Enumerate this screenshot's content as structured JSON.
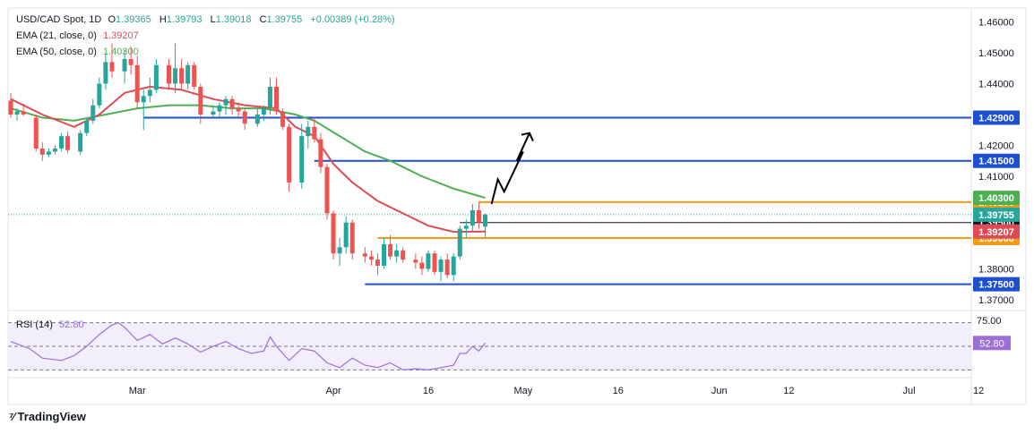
{
  "legend": {
    "symbol": "USD/CAD Spot, 1D",
    "open_label": "O",
    "open": "1.39365",
    "high_label": "H",
    "high": "1.39793",
    "low_label": "L",
    "low": "1.39018",
    "close_label": "C",
    "close": "1.39755",
    "change": "+0.00389 (+0.28%)",
    "ema21_label": "EMA (21, close, 0)",
    "ema21_value": "1.39207",
    "ema50_label": "EMA (50, close, 0)",
    "ema50_value": "1.40300",
    "rsi_label": "RSI (14)",
    "rsi_value": "52.80"
  },
  "footer": {
    "brand": "TradingView"
  },
  "colors": {
    "up": "#26a69a",
    "down": "#ef5350",
    "ema21": "#e04a54",
    "ema50": "#4caf50",
    "blue_line": "#1e4fd1",
    "orange_line": "#f39c12",
    "rsi": "#9c6fd6",
    "rsi_bg": "#f3eefb"
  },
  "chart_data": {
    "type": "candlestick",
    "title": "USD/CAD Spot, 1D",
    "ylim": [
      1.3665,
      1.4645
    ],
    "y_ticks": [
      "1.46000",
      "1.45000",
      "1.44000",
      "1.43000",
      "1.42000",
      "1.41000",
      "1.40000",
      "1.39000",
      "1.38000",
      "1.37000"
    ],
    "x_labels": [
      {
        "label": "Mar",
        "day": 20
      },
      {
        "label": "Apr",
        "day": 51
      },
      {
        "label": "16",
        "day": 66
      },
      {
        "label": "May",
        "day": 81
      },
      {
        "label": "16",
        "day": 96
      },
      {
        "label": "Jun",
        "day": 112
      },
      {
        "label": "12",
        "day": 123
      },
      {
        "label": "Jul",
        "day": 142
      },
      {
        "label": "12",
        "day": 153
      }
    ],
    "candles": [
      {
        "d": 0,
        "o": 1.4345,
        "h": 1.437,
        "l": 1.429,
        "c": 1.43
      },
      {
        "d": 1,
        "o": 1.43,
        "h": 1.432,
        "l": 1.428,
        "c": 1.431
      },
      {
        "d": 2,
        "o": 1.431,
        "h": 1.4335,
        "l": 1.4295,
        "c": 1.43
      },
      {
        "d": 4,
        "o": 1.429,
        "h": 1.43,
        "l": 1.418,
        "c": 1.419
      },
      {
        "d": 5,
        "o": 1.419,
        "h": 1.421,
        "l": 1.415,
        "c": 1.417
      },
      {
        "d": 6,
        "o": 1.417,
        "h": 1.419,
        "l": 1.416,
        "c": 1.418
      },
      {
        "d": 7,
        "o": 1.418,
        "h": 1.42,
        "l": 1.417,
        "c": 1.419
      },
      {
        "d": 8,
        "o": 1.419,
        "h": 1.424,
        "l": 1.418,
        "c": 1.423
      },
      {
        "d": 9,
        "o": 1.423,
        "h": 1.4245,
        "l": 1.4175,
        "c": 1.4185
      },
      {
        "d": 11,
        "o": 1.418,
        "h": 1.425,
        "l": 1.417,
        "c": 1.424
      },
      {
        "d": 12,
        "o": 1.424,
        "h": 1.429,
        "l": 1.423,
        "c": 1.428
      },
      {
        "d": 13,
        "o": 1.428,
        "h": 1.435,
        "l": 1.427,
        "c": 1.433
      },
      {
        "d": 14,
        "o": 1.433,
        "h": 1.442,
        "l": 1.432,
        "c": 1.44
      },
      {
        "d": 15,
        "o": 1.44,
        "h": 1.45,
        "l": 1.438,
        "c": 1.447
      },
      {
        "d": 16,
        "o": 1.447,
        "h": 1.453,
        "l": 1.442,
        "c": 1.444
      },
      {
        "d": 18,
        "o": 1.444,
        "h": 1.451,
        "l": 1.44,
        "c": 1.448
      },
      {
        "d": 19,
        "o": 1.448,
        "h": 1.452,
        "l": 1.443,
        "c": 1.446
      },
      {
        "d": 20,
        "o": 1.446,
        "h": 1.449,
        "l": 1.432,
        "c": 1.434
      },
      {
        "d": 21,
        "o": 1.434,
        "h": 1.438,
        "l": 1.425,
        "c": 1.436
      },
      {
        "d": 22,
        "o": 1.436,
        "h": 1.442,
        "l": 1.434,
        "c": 1.438
      },
      {
        "d": 23,
        "o": 1.438,
        "h": 1.448,
        "l": 1.437,
        "c": 1.446
      },
      {
        "d": 25,
        "o": 1.446,
        "h": 1.448,
        "l": 1.438,
        "c": 1.44
      },
      {
        "d": 26,
        "o": 1.44,
        "h": 1.453,
        "l": 1.437,
        "c": 1.445
      },
      {
        "d": 27,
        "o": 1.445,
        "h": 1.448,
        "l": 1.438,
        "c": 1.44
      },
      {
        "d": 28,
        "o": 1.44,
        "h": 1.447,
        "l": 1.438,
        "c": 1.446
      },
      {
        "d": 29,
        "o": 1.446,
        "h": 1.447,
        "l": 1.438,
        "c": 1.439
      },
      {
        "d": 30,
        "o": 1.439,
        "h": 1.44,
        "l": 1.427,
        "c": 1.43
      },
      {
        "d": 32,
        "o": 1.43,
        "h": 1.433,
        "l": 1.429,
        "c": 1.431
      },
      {
        "d": 33,
        "o": 1.431,
        "h": 1.434,
        "l": 1.429,
        "c": 1.433
      },
      {
        "d": 34,
        "o": 1.433,
        "h": 1.436,
        "l": 1.43,
        "c": 1.435
      },
      {
        "d": 35,
        "o": 1.435,
        "h": 1.436,
        "l": 1.43,
        "c": 1.432
      },
      {
        "d": 36,
        "o": 1.432,
        "h": 1.434,
        "l": 1.429,
        "c": 1.431
      },
      {
        "d": 37,
        "o": 1.431,
        "h": 1.432,
        "l": 1.425,
        "c": 1.427
      },
      {
        "d": 39,
        "o": 1.427,
        "h": 1.432,
        "l": 1.426,
        "c": 1.43
      },
      {
        "d": 40,
        "o": 1.43,
        "h": 1.433,
        "l": 1.428,
        "c": 1.432
      },
      {
        "d": 41,
        "o": 1.432,
        "h": 1.442,
        "l": 1.43,
        "c": 1.439
      },
      {
        "d": 42,
        "o": 1.439,
        "h": 1.442,
        "l": 1.43,
        "c": 1.431
      },
      {
        "d": 43,
        "o": 1.431,
        "h": 1.432,
        "l": 1.425,
        "c": 1.426
      },
      {
        "d": 44,
        "o": 1.426,
        "h": 1.427,
        "l": 1.405,
        "c": 1.408
      },
      {
        "d": 46,
        "o": 1.408,
        "h": 1.427,
        "l": 1.406,
        "c": 1.423
      },
      {
        "d": 47,
        "o": 1.423,
        "h": 1.428,
        "l": 1.419,
        "c": 1.426
      },
      {
        "d": 48,
        "o": 1.426,
        "h": 1.429,
        "l": 1.421,
        "c": 1.422
      },
      {
        "d": 49,
        "o": 1.422,
        "h": 1.424,
        "l": 1.411,
        "c": 1.413
      },
      {
        "d": 50,
        "o": 1.413,
        "h": 1.414,
        "l": 1.396,
        "c": 1.398
      },
      {
        "d": 51,
        "o": 1.398,
        "h": 1.399,
        "l": 1.383,
        "c": 1.385
      },
      {
        "d": 52,
        "o": 1.385,
        "h": 1.39,
        "l": 1.381,
        "c": 1.387
      },
      {
        "d": 53,
        "o": 1.387,
        "h": 1.397,
        "l": 1.385,
        "c": 1.395
      },
      {
        "d": 54,
        "o": 1.395,
        "h": 1.396,
        "l": 1.383,
        "c": 1.385
      },
      {
        "d": 56,
        "o": 1.385,
        "h": 1.387,
        "l": 1.382,
        "c": 1.384
      },
      {
        "d": 57,
        "o": 1.384,
        "h": 1.386,
        "l": 1.381,
        "c": 1.383
      },
      {
        "d": 58,
        "o": 1.383,
        "h": 1.385,
        "l": 1.378,
        "c": 1.381
      },
      {
        "d": 59,
        "o": 1.381,
        "h": 1.39,
        "l": 1.38,
        "c": 1.388
      },
      {
        "d": 60,
        "o": 1.388,
        "h": 1.391,
        "l": 1.383,
        "c": 1.384
      },
      {
        "d": 61,
        "o": 1.384,
        "h": 1.388,
        "l": 1.382,
        "c": 1.386
      },
      {
        "d": 62,
        "o": 1.386,
        "h": 1.387,
        "l": 1.382,
        "c": 1.383
      },
      {
        "d": 64,
        "o": 1.383,
        "h": 1.385,
        "l": 1.38,
        "c": 1.382
      },
      {
        "d": 65,
        "o": 1.382,
        "h": 1.384,
        "l": 1.378,
        "c": 1.38
      },
      {
        "d": 66,
        "o": 1.38,
        "h": 1.386,
        "l": 1.379,
        "c": 1.385
      },
      {
        "d": 67,
        "o": 1.385,
        "h": 1.386,
        "l": 1.378,
        "c": 1.379
      },
      {
        "d": 68,
        "o": 1.379,
        "h": 1.384,
        "l": 1.376,
        "c": 1.383
      },
      {
        "d": 69,
        "o": 1.383,
        "h": 1.385,
        "l": 1.377,
        "c": 1.378
      },
      {
        "d": 70,
        "o": 1.378,
        "h": 1.385,
        "l": 1.376,
        "c": 1.384
      },
      {
        "d": 71,
        "o": 1.384,
        "h": 1.394,
        "l": 1.383,
        "c": 1.393
      },
      {
        "d": 72,
        "o": 1.393,
        "h": 1.396,
        "l": 1.39,
        "c": 1.394
      },
      {
        "d": 73,
        "o": 1.394,
        "h": 1.401,
        "l": 1.392,
        "c": 1.399
      },
      {
        "d": 74,
        "o": 1.399,
        "h": 1.4016,
        "l": 1.393,
        "c": 1.395
      },
      {
        "d": 75,
        "o": 1.3937,
        "h": 1.3979,
        "l": 1.3902,
        "c": 1.3976
      }
    ],
    "ema21": [
      [
        0,
        1.435
      ],
      [
        5,
        1.43
      ],
      [
        10,
        1.426
      ],
      [
        14,
        1.43
      ],
      [
        18,
        1.437
      ],
      [
        22,
        1.439
      ],
      [
        27,
        1.438
      ],
      [
        32,
        1.435
      ],
      [
        37,
        1.433
      ],
      [
        42,
        1.432
      ],
      [
        45,
        1.426
      ],
      [
        48,
        1.423
      ],
      [
        51,
        1.414
      ],
      [
        54,
        1.408
      ],
      [
        58,
        1.402
      ],
      [
        62,
        1.398
      ],
      [
        66,
        1.394
      ],
      [
        70,
        1.392
      ],
      [
        75,
        1.3921
      ]
    ],
    "ema50": [
      [
        0,
        1.432
      ],
      [
        5,
        1.429
      ],
      [
        10,
        1.428
      ],
      [
        15,
        1.43
      ],
      [
        20,
        1.432
      ],
      [
        25,
        1.433
      ],
      [
        30,
        1.433
      ],
      [
        35,
        1.432
      ],
      [
        40,
        1.432
      ],
      [
        45,
        1.43
      ],
      [
        48,
        1.428
      ],
      [
        52,
        1.423
      ],
      [
        56,
        1.418
      ],
      [
        60,
        1.415
      ],
      [
        65,
        1.41
      ],
      [
        70,
        1.406
      ],
      [
        75,
        1.403
      ]
    ],
    "horizontal_levels": [
      {
        "value": 1.429,
        "label": "1.42900",
        "color": "#1e4fd1",
        "kind": "resistance",
        "from_day": 21
      },
      {
        "value": 1.415,
        "label": "1.41500",
        "color": "#1e4fd1",
        "kind": "resistance",
        "from_day": 48
      },
      {
        "value": 1.40163,
        "label": "1.40163",
        "color": "#f39c12",
        "kind": "range-high",
        "from_day": 74
      },
      {
        "value": 1.395,
        "label": "1.39500",
        "color": "#131722",
        "kind": "pivot",
        "from_day": 71
      },
      {
        "value": 1.39,
        "label": "1.39000",
        "color": "#f39c12",
        "kind": "range-low",
        "from_day": 58
      },
      {
        "value": 1.375,
        "label": "1.37500",
        "color": "#1e4fd1",
        "kind": "support",
        "from_day": 56
      }
    ],
    "price_tags": [
      {
        "label": "1.40300",
        "value": 1.403,
        "color": "#4caf50",
        "text_color": "#ffffff"
      },
      {
        "label": "1.39755",
        "value": 1.39755,
        "color": "#26a69a",
        "text_color": "#ffffff"
      },
      {
        "label": "1.39207",
        "value": 1.39207,
        "color": "#e04a54",
        "text_color": "#ffffff"
      }
    ],
    "current_price": 1.39755,
    "projection_arrow": [
      [
        76,
        1.401
      ],
      [
        77,
        1.409
      ],
      [
        78,
        1.405
      ],
      [
        81,
        1.418
      ],
      [
        80,
        1.415
      ],
      [
        82,
        1.424
      ]
    ],
    "rsi": {
      "ylim": [
        25,
        78
      ],
      "levels": [
        70,
        50,
        30
      ],
      "axis_label": "75.00",
      "values": [
        [
          0,
          54
        ],
        [
          3,
          48
        ],
        [
          5,
          40
        ],
        [
          8,
          38
        ],
        [
          10,
          42
        ],
        [
          12,
          50
        ],
        [
          14,
          60
        ],
        [
          16,
          68
        ],
        [
          17,
          70
        ],
        [
          18,
          66
        ],
        [
          20,
          55
        ],
        [
          22,
          60
        ],
        [
          24,
          52
        ],
        [
          26,
          57
        ],
        [
          28,
          52
        ],
        [
          30,
          45
        ],
        [
          32,
          50
        ],
        [
          34,
          54
        ],
        [
          36,
          48
        ],
        [
          38,
          44
        ],
        [
          40,
          46
        ],
        [
          41,
          58
        ],
        [
          42,
          50
        ],
        [
          44,
          38
        ],
        [
          46,
          48
        ],
        [
          48,
          46
        ],
        [
          50,
          36
        ],
        [
          52,
          32
        ],
        [
          54,
          40
        ],
        [
          56,
          34
        ],
        [
          58,
          32
        ],
        [
          60,
          36
        ],
        [
          62,
          30
        ],
        [
          64,
          31
        ],
        [
          66,
          30
        ],
        [
          68,
          32
        ],
        [
          70,
          34
        ],
        [
          71,
          44
        ],
        [
          72,
          44
        ],
        [
          73,
          50
        ],
        [
          74,
          46
        ],
        [
          75,
          52.8
        ]
      ]
    }
  }
}
